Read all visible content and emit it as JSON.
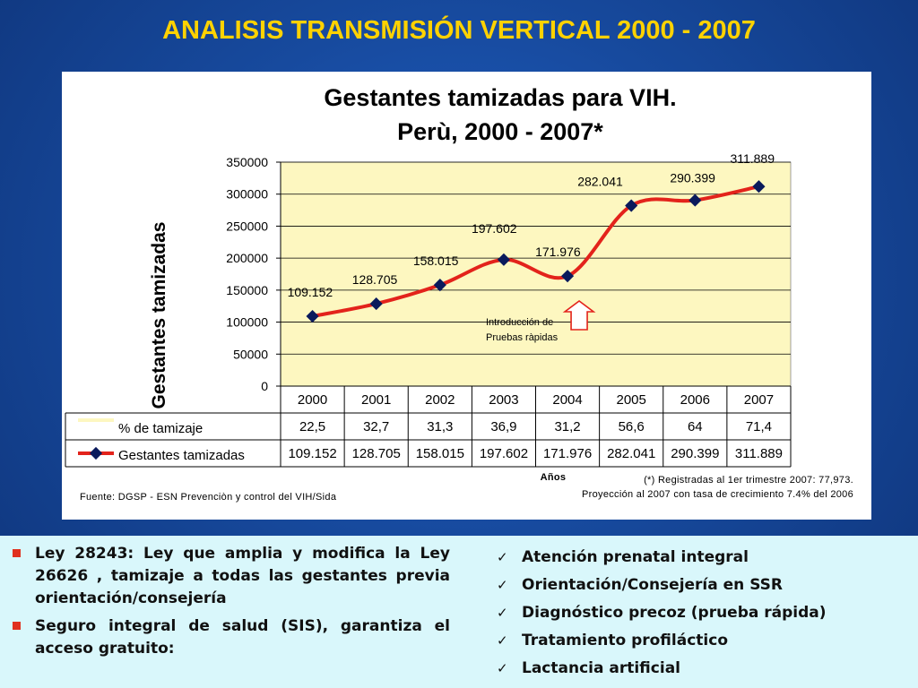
{
  "slide_title": "ANALISIS TRANSMISIÓN VERTICAL 2000 - 2007",
  "chart_data": {
    "type": "line",
    "title": "Gestantes tamizadas para VIH.",
    "subtitle": "Perù,  2000 - 2007*",
    "ylabel": "Gestantes tamizadas",
    "xlabel": "Años",
    "ylim": [
      0,
      350000
    ],
    "yticks": [
      "350000",
      "300000",
      "250000",
      "200000",
      "150000",
      "100000",
      "50000",
      "0"
    ],
    "categories": [
      "2000",
      "2001",
      "2002",
      "2003",
      "2004",
      "2005",
      "2006",
      "2007"
    ],
    "series": [
      {
        "name": "Gestantes tamizadas",
        "values": [
          109152,
          128705,
          158015,
          197602,
          171976,
          282041,
          290399,
          311889
        ],
        "labels": [
          "109.152",
          "128.705",
          "158.015",
          "197.602",
          "171.976",
          "282.041",
          "290.399",
          "311.889"
        ],
        "color": "#e3231b",
        "marker_color": "#0a1a5c"
      }
    ],
    "table": {
      "rows": [
        {
          "name": "% de tamizaje",
          "values": [
            "22,5",
            "32,7",
            "31,3",
            "36,9",
            "31,2",
            "56,6",
            "64",
            "71,4"
          ]
        },
        {
          "name": "Gestantes tamizadas",
          "values": [
            "109.152",
            "128.705",
            "158.015",
            "197.602",
            "171.976",
            "282.041",
            "290.399",
            "311.889"
          ]
        }
      ]
    },
    "annotation": {
      "line1": "Introducción de",
      "line2": "Pruebas ràpidas"
    },
    "plot_background": "#fdf7c0",
    "grid": true,
    "source": "Fuente: DGSP - ESN Prevenciòn y control del VIH/Sida",
    "footnote1": "(*) Registradas al 1er trimestre 2007: 77,973.",
    "footnote2": "Proyección al 2007 con tasa de crecimiento 7.4% del 2006"
  },
  "left_bullets": [
    "Ley 28243: Ley que amplia y modifica la Ley 26626 , tamizaje a todas las gestantes previa orientación/consejería",
    "Seguro integral de salud (SIS), garantiza el acceso gratuito:"
  ],
  "right_bullets": [
    "Atención prenatal integral",
    "Orientación/Consejería en SSR",
    "Diagnóstico precoz (prueba rápida)",
    "Tratamiento profiláctico",
    "Lactancia artificial"
  ],
  "colors": {
    "title": "#ffd200",
    "bullet_square": "#e0301e",
    "bottom_panel": "#d9f7fb"
  }
}
